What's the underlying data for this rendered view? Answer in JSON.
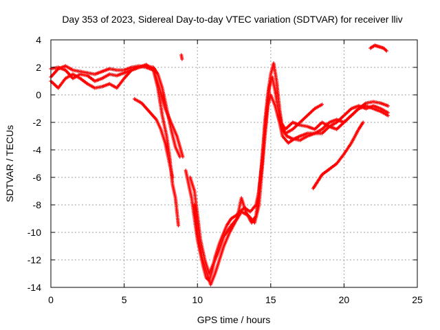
{
  "chart_data": {
    "type": "scatter",
    "title": "Day 353 of 2023, Sidereal Day-to-day VTEC variation (SDTVAR) for receiver lliv",
    "xlabel": "GPS time / hours",
    "ylabel": "SDTVAR / TECUs",
    "xlim": [
      0,
      25
    ],
    "ylim": [
      -14,
      4
    ],
    "xticks": [
      0,
      5,
      10,
      15,
      20,
      25
    ],
    "yticks": [
      -14,
      -12,
      -10,
      -8,
      -6,
      -4,
      -2,
      0,
      2,
      4
    ],
    "grid": true,
    "marker": "+",
    "color": "#ff0000",
    "series": [
      {
        "name": "track-1",
        "points": [
          [
            0.0,
            1.9
          ],
          [
            0.5,
            2.0
          ],
          [
            1.0,
            1.8
          ],
          [
            1.5,
            1.2
          ],
          [
            2.0,
            1.5
          ],
          [
            2.5,
            1.4
          ],
          [
            3.0,
            1.0
          ],
          [
            3.5,
            1.2
          ],
          [
            4.0,
            1.5
          ],
          [
            4.5,
            1.4
          ],
          [
            5.0,
            1.6
          ],
          [
            5.5,
            1.8
          ],
          [
            6.0,
            2.0
          ],
          [
            6.5,
            2.1
          ],
          [
            7.0,
            2.0
          ],
          [
            7.3,
            1.5
          ],
          [
            7.6,
            0.5
          ],
          [
            7.9,
            -1.0
          ],
          [
            8.2,
            -2.5
          ],
          [
            8.5,
            -3.8
          ],
          [
            8.8,
            -4.5
          ]
        ]
      },
      {
        "name": "track-2",
        "points": [
          [
            0.0,
            1.3
          ],
          [
            0.5,
            1.9
          ],
          [
            1.0,
            2.1
          ],
          [
            1.5,
            1.8
          ],
          [
            2.0,
            1.7
          ],
          [
            2.5,
            1.6
          ],
          [
            3.0,
            1.5
          ],
          [
            3.5,
            1.7
          ],
          [
            4.0,
            1.9
          ],
          [
            4.5,
            1.8
          ],
          [
            5.0,
            1.8
          ],
          [
            5.5,
            2.0
          ],
          [
            6.0,
            2.1
          ],
          [
            6.5,
            2.0
          ],
          [
            7.0,
            1.8
          ],
          [
            7.3,
            0.5
          ],
          [
            7.6,
            -1.5
          ],
          [
            7.9,
            -3.0
          ],
          [
            8.1,
            -4.5
          ],
          [
            8.3,
            -6.5
          ],
          [
            8.5,
            -7.5
          ],
          [
            8.7,
            -9.5
          ]
        ]
      },
      {
        "name": "track-3",
        "points": [
          [
            0.0,
            1.0
          ],
          [
            0.5,
            0.5
          ],
          [
            1.0,
            1.2
          ],
          [
            1.5,
            1.5
          ],
          [
            2.0,
            1.2
          ],
          [
            2.5,
            0.8
          ],
          [
            3.0,
            0.5
          ],
          [
            3.5,
            0.6
          ],
          [
            4.0,
            0.8
          ],
          [
            4.5,
            0.5
          ],
          [
            5.0,
            1.2
          ],
          [
            5.5,
            1.8
          ],
          [
            6.0,
            2.0
          ],
          [
            6.5,
            2.2
          ],
          [
            7.0,
            1.8
          ],
          [
            7.4,
            0.5
          ],
          [
            7.8,
            -1.0
          ],
          [
            8.2,
            -2.0
          ],
          [
            8.6,
            -3.0
          ],
          [
            9.0,
            -4.5
          ]
        ]
      },
      {
        "name": "track-4",
        "points": [
          [
            5.7,
            -0.3
          ],
          [
            6.2,
            -0.6
          ],
          [
            6.7,
            -1.2
          ],
          [
            7.2,
            -1.8
          ],
          [
            7.5,
            -2.5
          ],
          [
            7.8,
            -3.5
          ],
          [
            8.0,
            -4.5
          ],
          [
            8.3,
            -6.0
          ]
        ]
      },
      {
        "name": "track-5",
        "points": [
          [
            8.9,
            2.9
          ],
          [
            8.95,
            2.6
          ]
        ]
      },
      {
        "name": "track-6",
        "points": [
          [
            9.2,
            -5.5
          ],
          [
            9.4,
            -6.5
          ],
          [
            9.6,
            -7.5
          ],
          [
            9.8,
            -9.0
          ],
          [
            10.0,
            -10.5
          ],
          [
            10.2,
            -11.5
          ],
          [
            10.4,
            -12.5
          ],
          [
            10.6,
            -13.3
          ],
          [
            10.8,
            -13.5
          ],
          [
            11.0,
            -12.8
          ],
          [
            11.2,
            -11.8
          ],
          [
            11.5,
            -10.8
          ],
          [
            11.8,
            -10.0
          ],
          [
            12.0,
            -9.5
          ],
          [
            12.3,
            -9.0
          ],
          [
            12.6,
            -8.8
          ],
          [
            12.9,
            -8.5
          ],
          [
            13.2,
            -8.2
          ],
          [
            13.6,
            -8.5
          ],
          [
            14.0,
            -8.0
          ],
          [
            14.2,
            -7.0
          ],
          [
            14.4,
            -5.0
          ],
          [
            14.6,
            -2.0
          ],
          [
            14.8,
            0.0
          ],
          [
            15.0,
            1.5
          ],
          [
            15.2,
            2.3
          ],
          [
            15.4,
            1.0
          ],
          [
            15.6,
            -1.0
          ],
          [
            15.8,
            -2.5
          ],
          [
            16.0,
            -2.8
          ],
          [
            16.5,
            -2.5
          ],
          [
            17.0,
            -2.0
          ],
          [
            17.5,
            -1.5
          ],
          [
            18.0,
            -1.0
          ],
          [
            18.5,
            -0.7
          ]
        ]
      },
      {
        "name": "track-7",
        "points": [
          [
            9.8,
            -8.0
          ],
          [
            10.0,
            -10.0
          ],
          [
            10.3,
            -11.8
          ],
          [
            10.6,
            -12.8
          ],
          [
            10.9,
            -13.8
          ],
          [
            11.2,
            -13.0
          ],
          [
            11.5,
            -12.0
          ],
          [
            11.8,
            -11.0
          ],
          [
            12.2,
            -10.0
          ],
          [
            12.6,
            -9.2
          ],
          [
            13.0,
            -8.5
          ],
          [
            13.5,
            -8.8
          ],
          [
            13.9,
            -9.3
          ],
          [
            14.2,
            -8.0
          ],
          [
            14.4,
            -5.5
          ],
          [
            14.6,
            -3.0
          ],
          [
            14.8,
            -0.8
          ],
          [
            15.0,
            0.0
          ],
          [
            15.3,
            -0.8
          ],
          [
            15.6,
            -2.0
          ],
          [
            15.8,
            -3.0
          ],
          [
            16.2,
            -3.5
          ],
          [
            16.6,
            -3.2
          ],
          [
            17.0,
            -3.0
          ],
          [
            17.5,
            -2.8
          ],
          [
            18.0,
            -2.8
          ],
          [
            18.5,
            -2.5
          ],
          [
            19.0,
            -2.0
          ],
          [
            19.5,
            -1.8
          ],
          [
            20.0,
            -2.0
          ],
          [
            20.5,
            -1.5
          ],
          [
            21.0,
            -1.0
          ],
          [
            21.5,
            -0.6
          ],
          [
            22.0,
            -0.5
          ],
          [
            22.5,
            -0.6
          ],
          [
            23.0,
            -0.8
          ]
        ]
      },
      {
        "name": "track-8",
        "points": [
          [
            9.5,
            -6.0
          ],
          [
            9.8,
            -7.0
          ],
          [
            10.2,
            -10.5
          ],
          [
            10.5,
            -12.0
          ],
          [
            10.8,
            -13.0
          ],
          [
            11.0,
            -12.5
          ],
          [
            11.4,
            -11.5
          ],
          [
            11.8,
            -10.3
          ],
          [
            12.3,
            -9.5
          ],
          [
            12.7,
            -9.0
          ],
          [
            13.0,
            -7.5
          ],
          [
            13.3,
            -8.5
          ],
          [
            13.7,
            -9.3
          ],
          [
            14.0,
            -8.8
          ],
          [
            14.3,
            -6.0
          ],
          [
            14.5,
            -3.5
          ],
          [
            14.7,
            -1.5
          ],
          [
            14.9,
            0.5
          ],
          [
            15.1,
            1.3
          ],
          [
            15.3,
            0.3
          ],
          [
            15.5,
            -1.0
          ],
          [
            15.7,
            -2.0
          ],
          [
            16.0,
            -2.5
          ],
          [
            16.5,
            -2.0
          ],
          [
            17.0,
            -2.2
          ],
          [
            17.5,
            -2.3
          ],
          [
            18.0,
            -2.5
          ],
          [
            18.5,
            -2.0
          ],
          [
            19.0,
            -2.3
          ],
          [
            19.5,
            -2.0
          ],
          [
            20.0,
            -1.5
          ],
          [
            20.5,
            -1.0
          ],
          [
            21.0,
            -0.8
          ],
          [
            21.5,
            -1.0
          ],
          [
            22.0,
            -0.8
          ],
          [
            22.5,
            -1.0
          ],
          [
            23.0,
            -1.3
          ]
        ]
      },
      {
        "name": "track-9",
        "points": [
          [
            15.5,
            -1.5
          ],
          [
            15.8,
            -2.5
          ],
          [
            16.1,
            -3.0
          ],
          [
            16.5,
            -3.2
          ],
          [
            17.0,
            -3.3
          ],
          [
            17.5,
            -3.0
          ],
          [
            18.0,
            -2.8
          ],
          [
            18.5,
            -2.8
          ],
          [
            19.0,
            -2.3
          ],
          [
            19.5,
            -2.5
          ],
          [
            20.0,
            -2.0
          ],
          [
            20.5,
            -1.5
          ],
          [
            21.0,
            -1.0
          ],
          [
            21.5,
            -0.8
          ],
          [
            22.0,
            -1.0
          ],
          [
            22.5,
            -1.2
          ],
          [
            23.0,
            -1.5
          ]
        ]
      },
      {
        "name": "track-10",
        "points": [
          [
            17.9,
            -6.8
          ],
          [
            18.2,
            -6.3
          ],
          [
            18.5,
            -5.8
          ],
          [
            19.0,
            -5.4
          ],
          [
            19.5,
            -5.0
          ],
          [
            20.0,
            -4.3
          ],
          [
            20.5,
            -3.5
          ],
          [
            21.0,
            -2.5
          ],
          [
            21.3,
            -2.0
          ]
        ]
      },
      {
        "name": "track-11",
        "points": [
          [
            21.8,
            3.4
          ],
          [
            22.1,
            3.6
          ],
          [
            22.4,
            3.5
          ],
          [
            22.7,
            3.4
          ],
          [
            22.9,
            3.2
          ]
        ]
      }
    ]
  }
}
